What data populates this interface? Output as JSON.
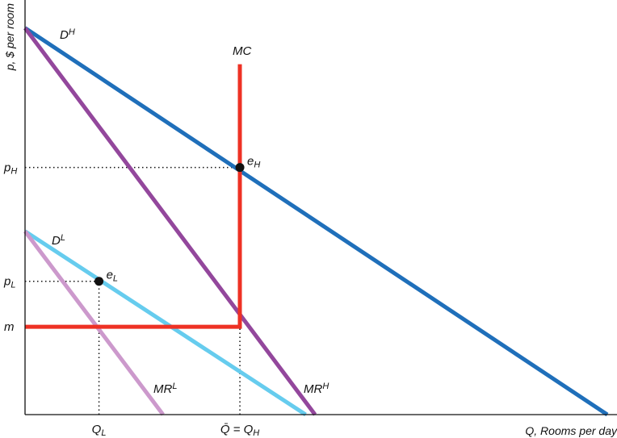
{
  "chart_data": {
    "type": "line",
    "title": "",
    "xlabel": "Q, Rooms per day",
    "ylabel": "p, $ per room",
    "xlim": [
      0,
      100
    ],
    "ylim": [
      0,
      100
    ],
    "x_ticks": [
      {
        "label": "Q",
        "sub": "L",
        "x": 12.7
      },
      {
        "label": "Q̄ = Q",
        "sub": "H",
        "x": 36.9
      }
    ],
    "y_ticks": [
      {
        "label": "p",
        "sub": "H",
        "y": 60.8
      },
      {
        "label": "p",
        "sub": "L",
        "y": 32.8
      },
      {
        "label": "m",
        "sub": "",
        "y": 21.6
      }
    ],
    "series": [
      {
        "name": "D",
        "sup": "H",
        "color": "#1f6fba",
        "points": [
          [
            0,
            95.1
          ],
          [
            100,
            0
          ]
        ]
      },
      {
        "name": "MR",
        "sup": "H",
        "color": "#93479c",
        "points": [
          [
            0,
            95.1
          ],
          [
            49.8,
            0
          ]
        ]
      },
      {
        "name": "D",
        "sup": "L",
        "color": "#66ccee",
        "points": [
          [
            0,
            45.1
          ],
          [
            48.2,
            0
          ]
        ]
      },
      {
        "name": "MR",
        "sup": "L",
        "color": "#cc99cc",
        "points": [
          [
            0,
            45.1
          ],
          [
            23.7,
            0
          ]
        ]
      },
      {
        "name": "MC",
        "sup": "",
        "color": "#ee3124",
        "points": [
          [
            0,
            21.6
          ],
          [
            36.9,
            21.6
          ],
          [
            36.9,
            86.2
          ]
        ]
      }
    ],
    "points": [
      {
        "name": "e",
        "sub": "H",
        "x": 36.9,
        "y": 60.8
      },
      {
        "name": "e",
        "sub": "L",
        "x": 12.7,
        "y": 32.8
      }
    ]
  }
}
